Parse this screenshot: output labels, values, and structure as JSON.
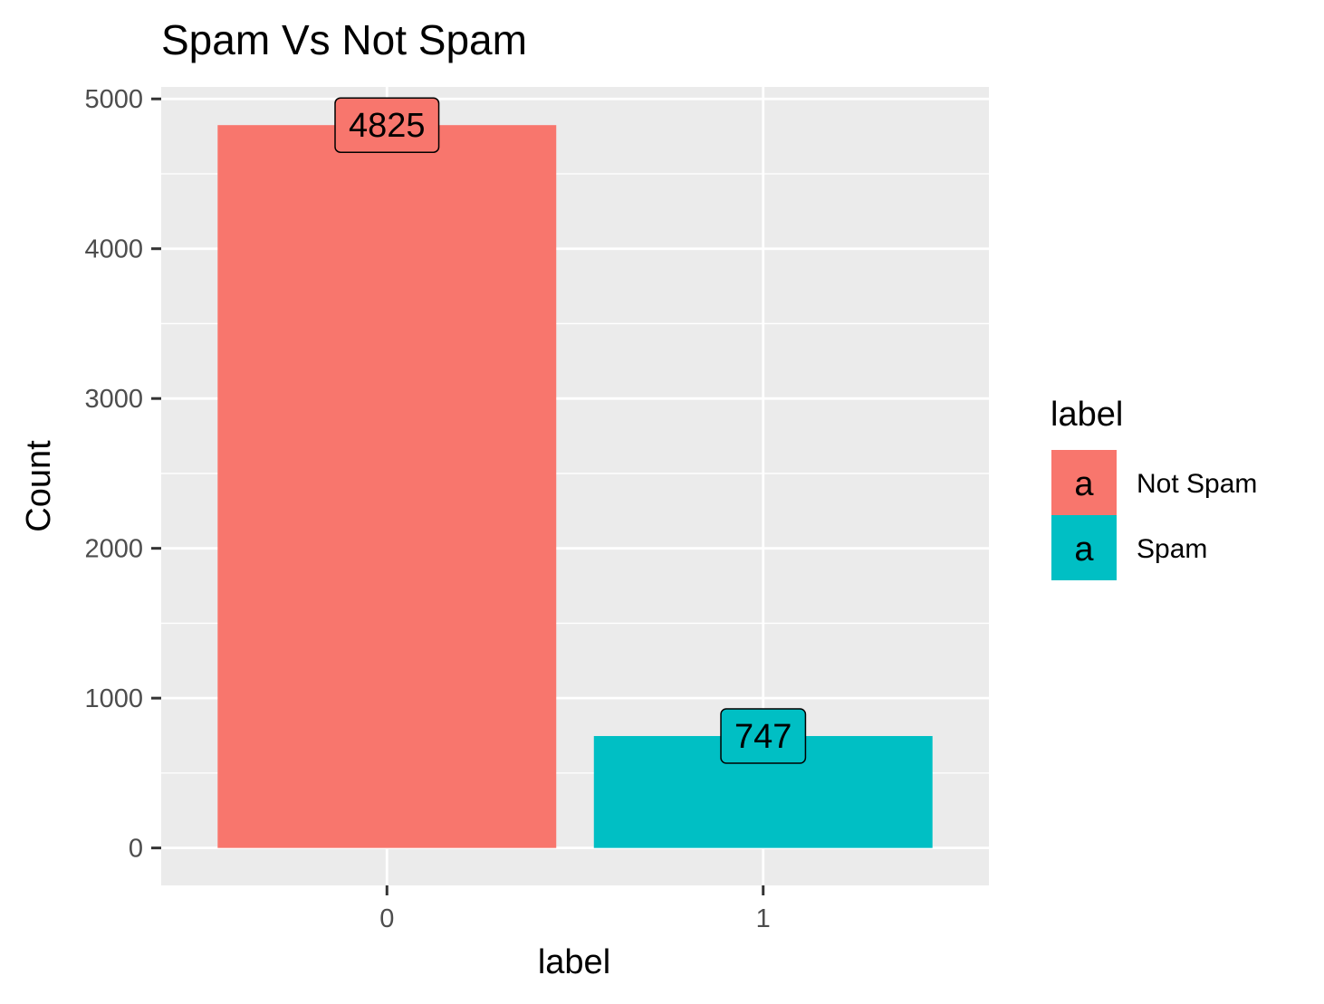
{
  "chart_data": {
    "type": "bar",
    "title": "Spam Vs Not Spam",
    "xlabel": "label",
    "ylabel": "Count",
    "categories": [
      "0",
      "1"
    ],
    "values": [
      4825,
      747
    ],
    "data_labels": [
      "4825",
      "747"
    ],
    "ylim": [
      -250,
      5080
    ],
    "yticks": [
      0,
      1000,
      2000,
      3000,
      4000,
      5000
    ],
    "ytick_labels": [
      "0",
      "1000",
      "2000",
      "3000",
      "4000",
      "5000"
    ],
    "grid": true,
    "legend": {
      "title": "label",
      "placement": "right",
      "key_glyph": "a",
      "entries": [
        "Not Spam",
        "Spam"
      ]
    },
    "colors": [
      "#F8766D",
      "#00BFC4"
    ],
    "panel_background": "#EBEBEB",
    "grid_color": "#FFFFFF"
  }
}
